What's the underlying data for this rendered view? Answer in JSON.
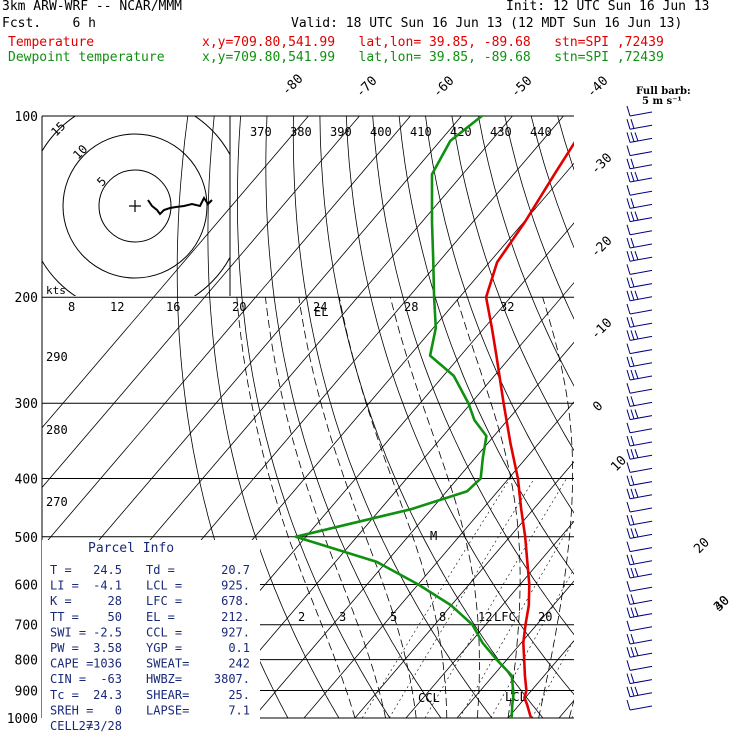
{
  "header": {
    "model": "3km ARW-WRF -- NCAR/MMM",
    "init": "Init: 12 UTC Sun 16 Jun 13",
    "fcst": "Fcst.    6 h",
    "valid": "Valid: 18 UTC Sun 16 Jun 13 (12 MDT Sun 16 Jun 13)",
    "temp_label": "Temperature",
    "dew_label": "Dewpoint temperature",
    "location": "x,y=709.80,541.99   lat,lon= 39.85, -89.68   stn=SPI ,72439"
  },
  "barb_legend": {
    "line1": "Full barb:",
    "line2": "5 m s⁻¹"
  },
  "hodograph_label": "kts",
  "parcel": {
    "title": "Parcel Info",
    "rows": [
      [
        "T  =",
        "24.5",
        "Td =",
        "20.7"
      ],
      [
        "LI =",
        "-4.1",
        "LCL =",
        "925."
      ],
      [
        "K  =",
        "28",
        "LFC =",
        "678."
      ],
      [
        "TT =",
        "50",
        "EL  =",
        "212."
      ],
      [
        "SWI =",
        "-2.5",
        "CCL =",
        "927."
      ],
      [
        "PW =",
        "3.58",
        "YGP =",
        "0.1"
      ],
      [
        "CAPE =",
        "1036",
        "SWEAT=",
        "242"
      ],
      [
        "CIN =",
        "-63",
        "HWBZ=",
        "3807."
      ],
      [
        "Tc =",
        "24.3",
        "SHEAR=",
        "25."
      ],
      [
        "SREH =",
        "0",
        "LAPSE=",
        "7.1"
      ],
      [
        "CELL =",
        "273/28",
        "",
        ""
      ]
    ]
  },
  "chart_data": {
    "type": "line",
    "yscale": "log-pressure",
    "ylim": [
      1000,
      100
    ],
    "xlim": [
      -40,
      40
    ],
    "pressure_ticks": [
      100,
      200,
      300,
      400,
      500,
      600,
      700,
      800,
      900,
      1000
    ],
    "isotherm_labels": [
      "-80",
      "-70",
      "-60",
      "-50",
      "-40",
      "-30",
      "-20",
      "-10",
      "0",
      "10",
      "20",
      "30",
      "40"
    ],
    "theta_labels": [
      "370",
      "380",
      "390",
      "400",
      "410",
      "420",
      "430",
      "440"
    ],
    "theta_low_labels": [
      "290",
      "280",
      "270"
    ],
    "mixing_ratio_labels": [
      "8",
      "12",
      "16",
      "20",
      "24",
      "28",
      "32"
    ],
    "mixing_ratio_low_labels": [
      "2",
      "3",
      "5",
      "8",
      "12",
      "20"
    ],
    "level_annotations": [
      "EL",
      "LFC",
      "CCL",
      "LCL",
      "M"
    ],
    "hodograph_rings": [
      "5",
      "10",
      "15"
    ],
    "series": [
      {
        "name": "Temperature",
        "color": "#e00000",
        "points": [
          [
            1000,
            24.5
          ],
          [
            950,
            21.5
          ],
          [
            925,
            19.8
          ],
          [
            900,
            19.0
          ],
          [
            850,
            16.2
          ],
          [
            800,
            13.4
          ],
          [
            750,
            10.4
          ],
          [
            700,
            7.8
          ],
          [
            650,
            5.2
          ],
          [
            600,
            1.8
          ],
          [
            550,
            -2.4
          ],
          [
            500,
            -7.0
          ],
          [
            450,
            -12.4
          ],
          [
            400,
            -18.2
          ],
          [
            350,
            -25.5
          ],
          [
            300,
            -33.6
          ],
          [
            250,
            -43.0
          ],
          [
            225,
            -48.5
          ],
          [
            200,
            -54.8
          ],
          [
            175,
            -58.5
          ],
          [
            150,
            -59.8
          ],
          [
            125,
            -62.0
          ],
          [
            100,
            -64.5
          ]
        ]
      },
      {
        "name": "Dewpoint temperature",
        "color": "#109010",
        "points": [
          [
            1000,
            20.7
          ],
          [
            950,
            18.6
          ],
          [
            925,
            17.6
          ],
          [
            900,
            16.4
          ],
          [
            850,
            13.6
          ],
          [
            800,
            8.0
          ],
          [
            750,
            2.4
          ],
          [
            700,
            -2.6
          ],
          [
            650,
            -10.0
          ],
          [
            600,
            -20.0
          ],
          [
            550,
            -32.0
          ],
          [
            500,
            -52.0
          ],
          [
            450,
            -34.0
          ],
          [
            420,
            -26.0
          ],
          [
            400,
            -25.5
          ],
          [
            370,
            -28.5
          ],
          [
            340,
            -31.5
          ],
          [
            320,
            -36.5
          ],
          [
            300,
            -40.5
          ],
          [
            270,
            -48.0
          ],
          [
            250,
            -56.0
          ],
          [
            225,
            -59.5
          ],
          [
            200,
            -65.0
          ],
          [
            175,
            -71.0
          ],
          [
            150,
            -78.0
          ],
          [
            125,
            -86.0
          ],
          [
            110,
            -88.0
          ],
          [
            100,
            -86.0
          ]
        ]
      }
    ]
  }
}
